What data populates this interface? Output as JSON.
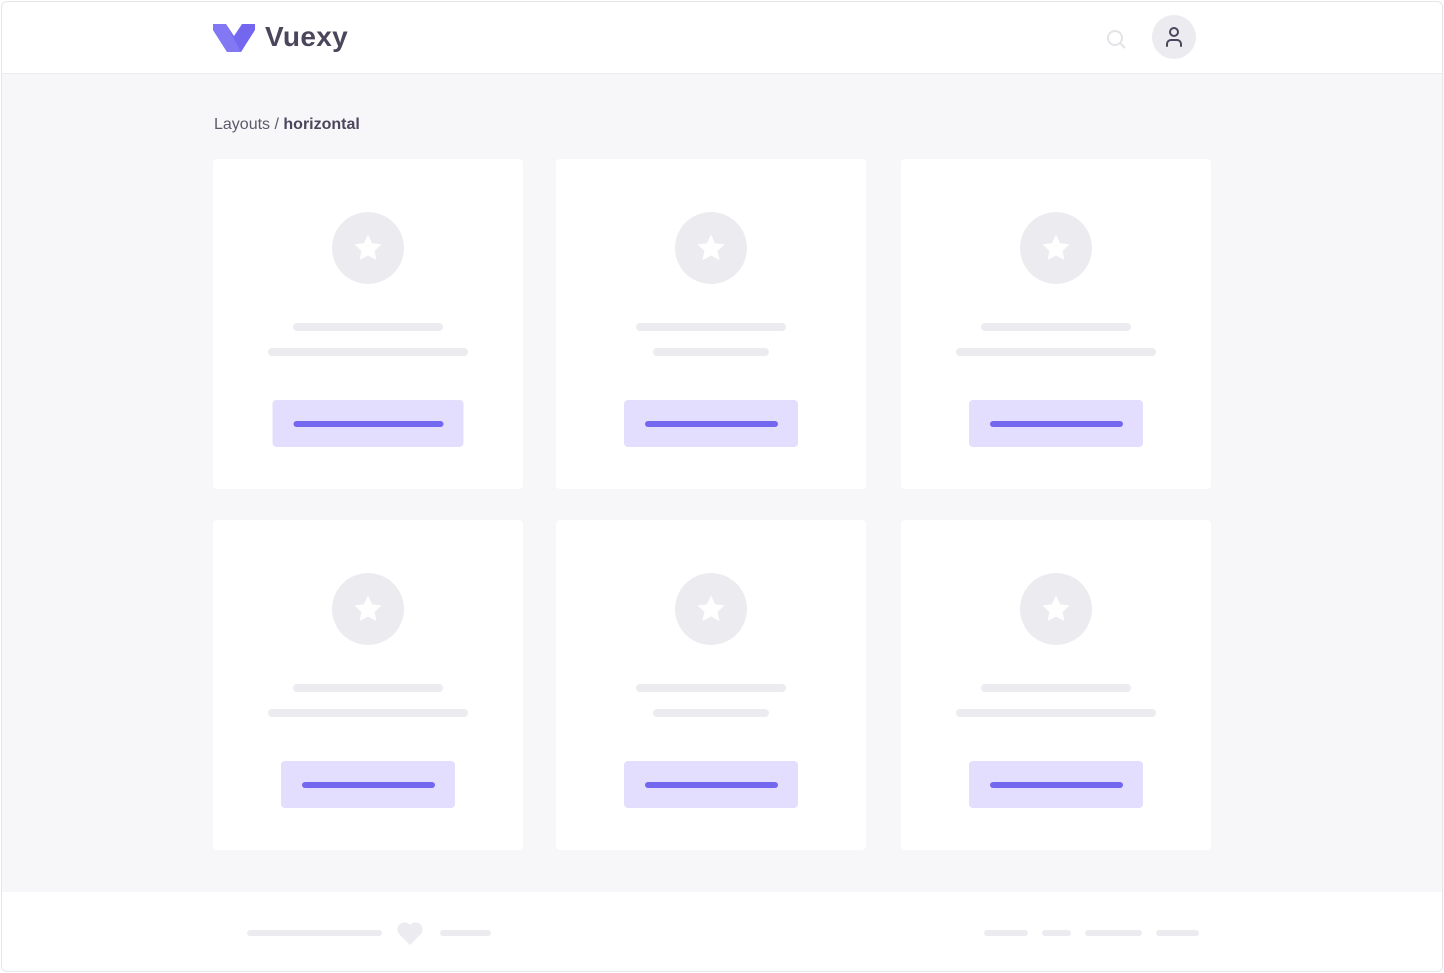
{
  "header": {
    "brand": "Vuexy",
    "logo_icon": "vuexy-v-logo",
    "search_icon": "search-icon",
    "avatar_icon": "user-icon"
  },
  "breadcrumb": {
    "parent": "Layouts",
    "separator": " / ",
    "current": "horizontal"
  },
  "colors": {
    "primary": "#7367f0",
    "primary_light": "#e3defd",
    "placeholder": "#ececf0",
    "text": "#4b465c",
    "background": "#f7f7f9"
  },
  "cards": [
    {
      "icon": "star-icon"
    },
    {
      "icon": "star-icon"
    },
    {
      "icon": "star-icon"
    },
    {
      "icon": "star-icon"
    },
    {
      "icon": "star-icon"
    },
    {
      "icon": "star-icon"
    }
  ],
  "footer": {
    "icon": "heart-icon"
  }
}
